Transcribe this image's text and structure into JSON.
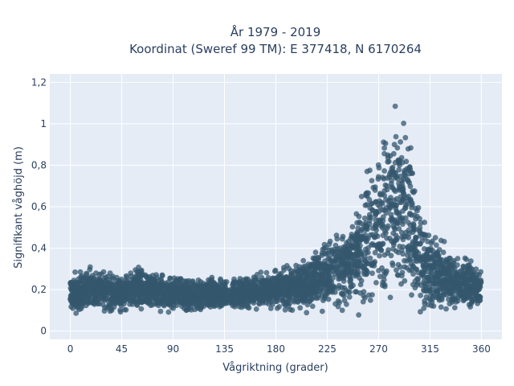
{
  "chart_data": {
    "type": "scatter",
    "title_line1": "År 1979 - 2019",
    "title_line2": "Koordinat (Sweref 99 TM): E 377418, N 6170264",
    "xlabel": "Vågriktning (grader)",
    "ylabel": "Signifikant våghöjd (m)",
    "xlim": [
      -18,
      378
    ],
    "ylim": [
      -0.04,
      1.24
    ],
    "xticks": [
      0,
      45,
      90,
      135,
      180,
      225,
      270,
      315,
      360
    ],
    "xtick_labels": [
      "0",
      "45",
      "90",
      "135",
      "180",
      "225",
      "270",
      "315",
      "360"
    ],
    "yticks": [
      0,
      0.2,
      0.4,
      0.6,
      0.8,
      1.0,
      1.2
    ],
    "ytick_labels": [
      "0",
      "0,2",
      "0,4",
      "0,6",
      "0,8",
      "1",
      "1,2"
    ],
    "grid": true,
    "colors": {
      "background": "#e5ecf6",
      "grid": "#ffffff",
      "marker": "#34576e",
      "text": "#2a3f5f"
    },
    "series": [
      {
        "x_range": [
          0,
          360
        ],
        "envelope": [
          {
            "x": 0,
            "lower": 0.07,
            "upper": 0.28
          },
          {
            "x": 20,
            "lower": 0.06,
            "upper": 0.32
          },
          {
            "x": 45,
            "lower": 0.07,
            "upper": 0.28
          },
          {
            "x": 60,
            "lower": 0.07,
            "upper": 0.33
          },
          {
            "x": 90,
            "lower": 0.07,
            "upper": 0.27
          },
          {
            "x": 135,
            "lower": 0.08,
            "upper": 0.26
          },
          {
            "x": 180,
            "lower": 0.09,
            "upper": 0.3
          },
          {
            "x": 200,
            "lower": 0.08,
            "upper": 0.34
          },
          {
            "x": 225,
            "lower": 0.07,
            "upper": 0.45
          },
          {
            "x": 250,
            "lower": 0.06,
            "upper": 0.62
          },
          {
            "x": 270,
            "lower": 0.05,
            "upper": 0.95
          },
          {
            "x": 282,
            "lower": 0.05,
            "upper": 1.2
          },
          {
            "x": 295,
            "lower": 0.05,
            "upper": 1.05
          },
          {
            "x": 310,
            "lower": 0.05,
            "upper": 0.55
          },
          {
            "x": 330,
            "lower": 0.06,
            "upper": 0.42
          },
          {
            "x": 360,
            "lower": 0.08,
            "upper": 0.32
          }
        ]
      }
    ]
  }
}
